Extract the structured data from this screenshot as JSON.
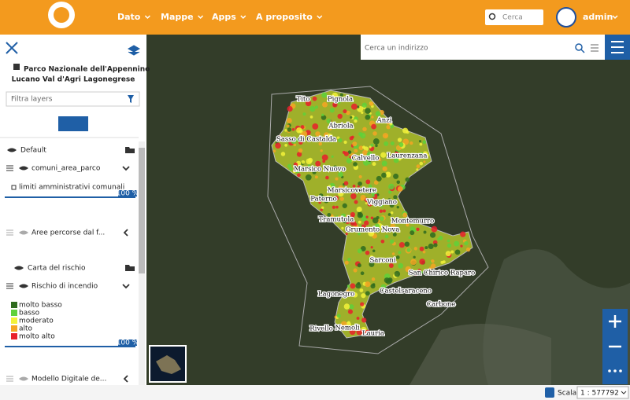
{
  "header": {
    "nav": [
      "Dato",
      "Mappe",
      "Apps",
      "A proposito"
    ],
    "search_placeholder": "Cerca",
    "user": "admin"
  },
  "sidebar": {
    "title_line1": "Parco Nazionale dell'Appennino",
    "title_line2": "Lucano Val d'Agri Lagonegrese",
    "filter_placeholder": "Filtra layers",
    "groups": [
      {
        "name": "Default",
        "layers": [
          {
            "name": "comuni_area_parco",
            "legend": [
              {
                "label": "limiti amministrativi comunali"
              }
            ],
            "opacity": "100 %"
          },
          {
            "name": "Aree percorse dal f..."
          }
        ]
      },
      {
        "name": "Carta del rischio",
        "layers": [
          {
            "name": "Rischio di incendio",
            "legend": [
              {
                "label": "molto basso",
                "color": "#2e6b1e"
              },
              {
                "label": "basso",
                "color": "#5fd13a"
              },
              {
                "label": "moderato",
                "color": "#f2f23a"
              },
              {
                "label": "alto",
                "color": "#f5a623"
              },
              {
                "label": "molto alto",
                "color": "#e8202a"
              }
            ],
            "opacity": "100 %"
          },
          {
            "name": "Modello Digitale de..."
          }
        ]
      }
    ]
  },
  "map": {
    "search_placeholder": "Cerca un indirizzo",
    "places": [
      "Tito",
      "Pignola",
      "Abriola",
      "Anzi",
      "Sasso di Castalda",
      "Calvello",
      "Laurenzana",
      "Marsico Nuovo",
      "Marsicovetere",
      "Paterno",
      "Viggiano",
      "Tramutola",
      "Montemurro",
      "Grumento Nova",
      "Sarconi",
      "San Chirico Raparo",
      "Lagonegro",
      "Castelsaraceno",
      "Carbone",
      "Rivello",
      "Nemoli",
      "Lauria"
    ]
  },
  "footer": {
    "scale_label": "Scala:",
    "scale_value": "1 : 577792"
  }
}
